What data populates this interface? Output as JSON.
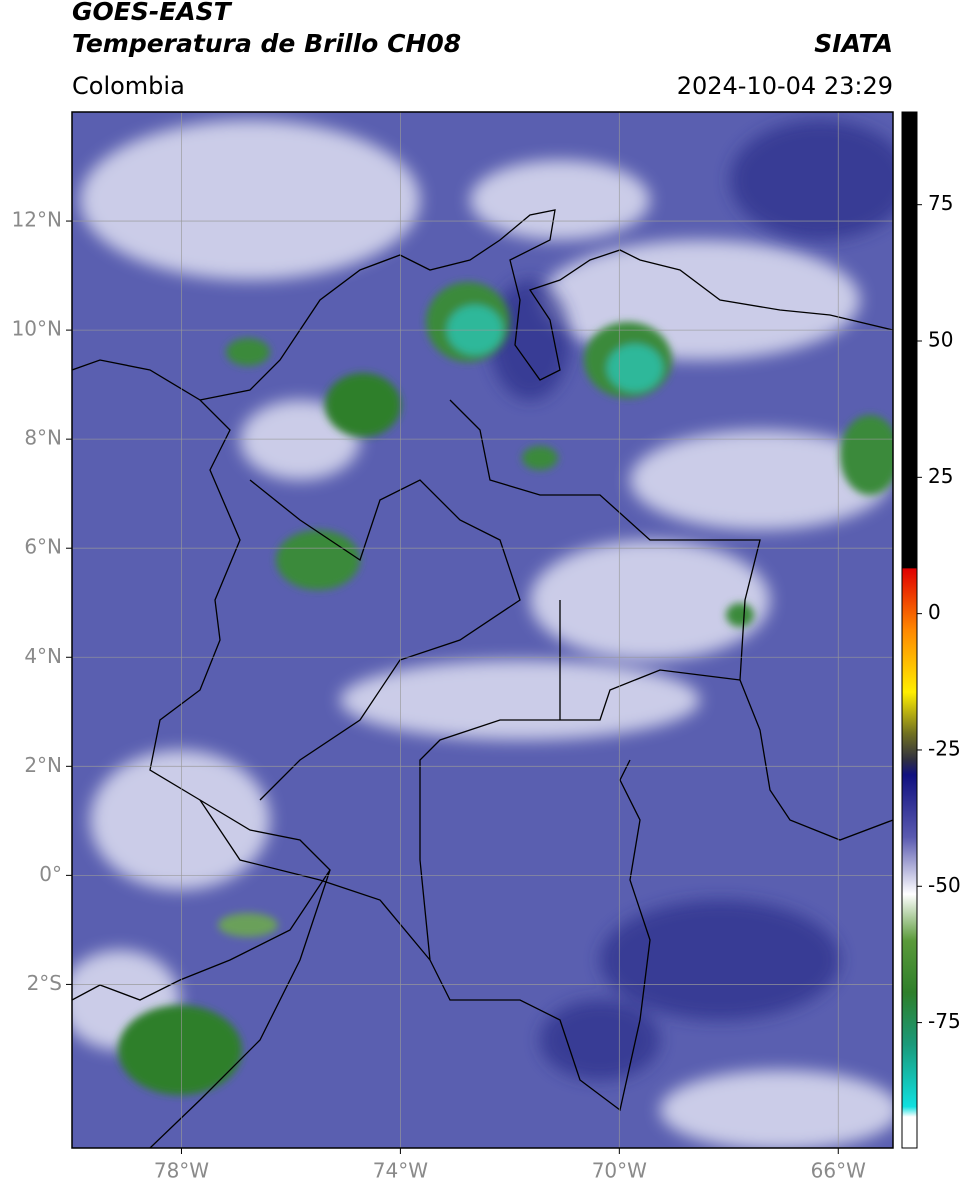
{
  "header": {
    "title_line1": "GOES-EAST",
    "title_line2": "Temperatura de Brillo CH08",
    "region": "Colombia",
    "source": "SIATA",
    "datetime": "2024-10-04 23:29"
  },
  "map": {
    "xlim": [
      -80,
      -65
    ],
    "ylim": [
      -5,
      14
    ],
    "xticks": [
      {
        "value": -78,
        "label": "78°W"
      },
      {
        "value": -74,
        "label": "74°W"
      },
      {
        "value": -70,
        "label": "70°W"
      },
      {
        "value": -66,
        "label": "66°W"
      }
    ],
    "yticks": [
      {
        "value": -2,
        "label": "2°S"
      },
      {
        "value": 0,
        "label": "0°"
      },
      {
        "value": 2,
        "label": "2°N"
      },
      {
        "value": 4,
        "label": "4°N"
      },
      {
        "value": 6,
        "label": "6°N"
      },
      {
        "value": 8,
        "label": "8°N"
      },
      {
        "value": 10,
        "label": "10°N"
      },
      {
        "value": 12,
        "label": "12°N"
      }
    ],
    "grid": true
  },
  "colorbar": {
    "clim": [
      -98,
      92
    ],
    "ticks": [
      75,
      50,
      25,
      0,
      -25,
      -50,
      -75
    ]
  }
}
